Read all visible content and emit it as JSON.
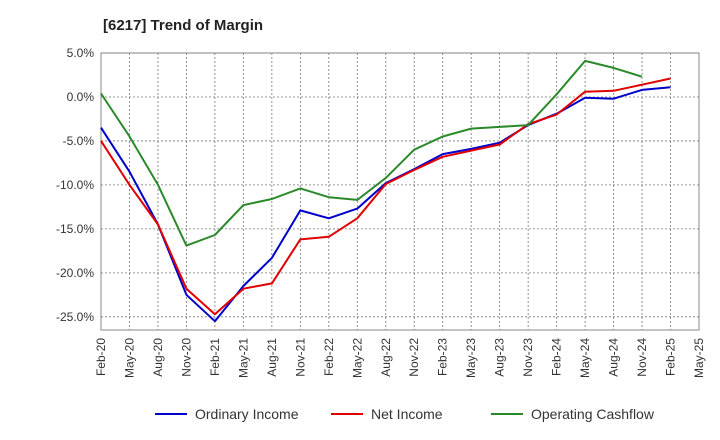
{
  "title": "[6217]  Trend of Margin",
  "chart_data": {
    "type": "line",
    "title": "[6217]  Trend of Margin",
    "x": [
      "Feb-20",
      "May-20",
      "Aug-20",
      "Nov-20",
      "Feb-21",
      "May-21",
      "Aug-21",
      "Nov-21",
      "Feb-22",
      "May-22",
      "Aug-22",
      "Nov-22",
      "Feb-23",
      "May-23",
      "Aug-23",
      "Nov-23",
      "Feb-24",
      "May-24",
      "Aug-24",
      "Nov-24",
      "Feb-25",
      "May-25"
    ],
    "y_ticks": [
      "5.0%",
      "0.0%",
      "-5.0%",
      "-10.0%",
      "-15.0%",
      "-20.0%",
      "-25.0%"
    ],
    "y_tick_values": [
      5,
      0,
      -5,
      -10,
      -15,
      -20,
      -25
    ],
    "ylim": [
      -26.5,
      5.0
    ],
    "grid": true,
    "legend_position": "bottom",
    "series": [
      {
        "name": "Ordinary Income",
        "color": "#0000cc",
        "values": [
          -3.5,
          -8.5,
          -14.5,
          -22.5,
          -25.5,
          -21.5,
          -18.3,
          -12.9,
          -13.8,
          -12.7,
          -9.8,
          -8.2,
          -6.5,
          -5.9,
          -5.2,
          -3.2,
          -1.9,
          -0.1,
          -0.2,
          0.8,
          1.1,
          null
        ]
      },
      {
        "name": "Net Income",
        "color": "#e00000",
        "values": [
          -5.0,
          -10.0,
          -14.5,
          -21.8,
          -24.7,
          -21.8,
          -21.2,
          -16.2,
          -15.9,
          -13.8,
          -9.9,
          -8.3,
          -6.8,
          -6.1,
          -5.4,
          -3.1,
          -2.0,
          0.6,
          0.7,
          1.4,
          2.1,
          null
        ]
      },
      {
        "name": "Operating Cashflow",
        "color": "#2a8a2a",
        "values": [
          0.4,
          -4.5,
          -10.0,
          -16.9,
          -15.7,
          -12.3,
          -11.6,
          -10.4,
          -11.4,
          -11.7,
          -9.2,
          -6.0,
          -4.5,
          -3.6,
          -3.4,
          -3.2,
          0.3,
          4.1,
          3.3,
          2.3,
          null,
          null
        ]
      }
    ]
  }
}
